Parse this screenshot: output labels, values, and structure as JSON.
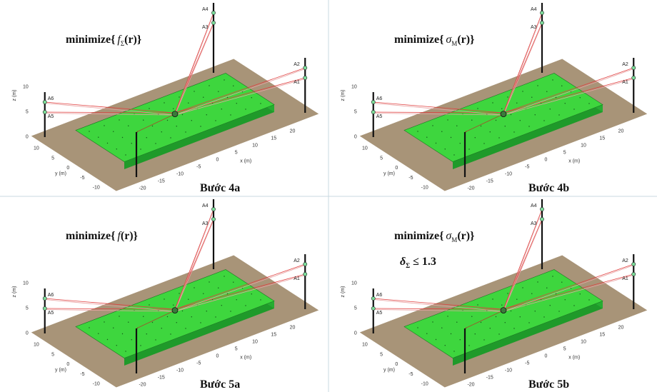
{
  "panels": [
    {
      "objective": {
        "prefix": "minimize{",
        "symbol": "f",
        "subscript": "Σ",
        "suffix": "(r)}"
      },
      "step": "Bước 4a"
    },
    {
      "objective": {
        "prefix": "minimize{",
        "symbol": "σ",
        "subscript": "M",
        "suffix": "(r)}"
      },
      "step": "Bước 4b"
    },
    {
      "objective": {
        "prefix": "minimize{",
        "symbol": "f",
        "suffix": "(r)}"
      },
      "step": "Bước 5a"
    },
    {
      "objective": {
        "prefix": "minimize{",
        "symbol": "σ",
        "subscript": "M",
        "suffix": "(r)}"
      },
      "constraint": {
        "symbol": "δ",
        "subscript": "Σ",
        "relation": "≤ 1.3"
      },
      "step": "Bước 5b"
    }
  ],
  "axes": {
    "x_label": "x (m)",
    "y_label": "y (m)",
    "z_label": "z (m)",
    "x_ticks": [
      -20,
      -15,
      -10,
      -5,
      0,
      5,
      10,
      15,
      20
    ],
    "y_ticks": [
      -10,
      -5,
      0,
      5,
      10
    ],
    "z_ticks": [
      0,
      5,
      10
    ]
  },
  "anchors": [
    "A1",
    "A2",
    "A3",
    "A4",
    "A5",
    "A6"
  ]
}
